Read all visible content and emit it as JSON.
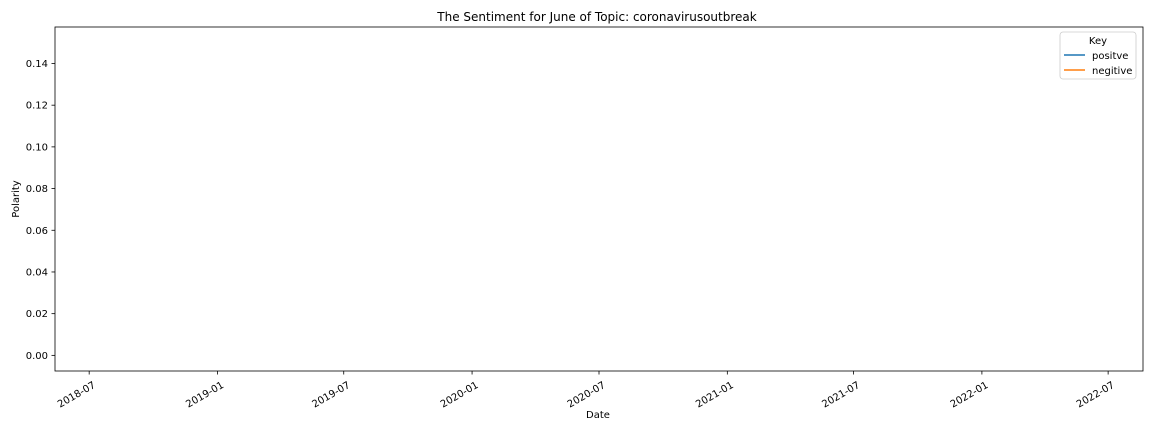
{
  "chart_data": {
    "type": "line",
    "title": "The Sentiment for June of Topic: coronavirusoutbreak",
    "xlabel": "Date",
    "ylabel": "Polarity",
    "x_ticks": [
      "2018-07",
      "2019-01",
      "2019-07",
      "2020-01",
      "2020-07",
      "2021-01",
      "2021-07",
      "2022-01",
      "2022-07"
    ],
    "y_ticks": [
      "0.00",
      "0.02",
      "0.04",
      "0.06",
      "0.08",
      "0.10",
      "0.12",
      "0.14"
    ],
    "xlim": [
      "2018-05-13",
      "2022-08-20"
    ],
    "ylim": [
      -0.0075,
      0.1575
    ],
    "grid": false,
    "legend": {
      "title": "Key",
      "position": "top-right"
    },
    "series": [
      {
        "name": "positve",
        "color": "#1f77b4",
        "values": []
      },
      {
        "name": "negitive",
        "color": "#ff7f0e",
        "values": []
      }
    ]
  }
}
